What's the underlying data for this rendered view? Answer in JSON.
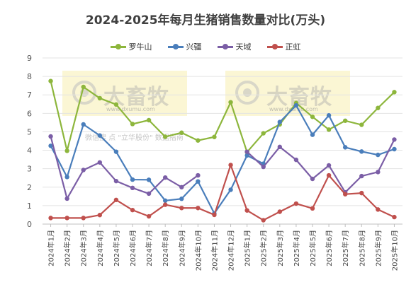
{
  "chart_data": {
    "type": "line",
    "title": "2024-2025年每月生猪销售数量对比(万头)",
    "xlabel": "",
    "ylabel": "",
    "ylim": [
      0,
      9
    ],
    "y_ticks": [
      0,
      1,
      2,
      3,
      4,
      5,
      6,
      7,
      8,
      9
    ],
    "grid": true,
    "legend_position": "top",
    "categories": [
      "2024年1月",
      "2024年2月",
      "2024年3月",
      "2024年4月",
      "2024年5月",
      "2024年6月",
      "2024年7月",
      "2024年8月",
      "2024年9月",
      "2024年10月",
      "2024年11月",
      "2024年12月",
      "2025年1月",
      "2025年2月",
      "2025年3月",
      "2025年4月",
      "2025年5月",
      "2025年6月",
      "2025年7月",
      "2025年8月",
      "2025年9月",
      "2025年10月"
    ],
    "series": [
      {
        "name": "罗牛山",
        "color": "#8db63c",
        "values": [
          7.75,
          3.97,
          7.43,
          6.82,
          6.48,
          5.42,
          5.63,
          4.73,
          4.95,
          4.53,
          4.72,
          6.6,
          3.9,
          4.92,
          5.4,
          6.56,
          5.81,
          5.12,
          5.6,
          5.38,
          6.29,
          7.15
        ]
      },
      {
        "name": "兴疆",
        "color": "#4a7ebb",
        "values": [
          4.24,
          2.55,
          5.4,
          4.8,
          3.92,
          2.41,
          2.4,
          1.27,
          1.37,
          2.31,
          0.58,
          1.86,
          3.72,
          3.27,
          5.53,
          6.43,
          4.84,
          5.89,
          4.16,
          3.93,
          3.75,
          4.06
        ]
      },
      {
        "name": "天域",
        "color": "#7b5ea6",
        "values": [
          4.75,
          1.38,
          2.93,
          3.34,
          2.33,
          1.96,
          1.65,
          2.52,
          2.0,
          2.64,
          null,
          null,
          3.92,
          3.1,
          4.18,
          3.48,
          2.45,
          3.18,
          1.72,
          2.6,
          2.82,
          4.58
        ]
      },
      {
        "name": "正虹",
        "color": "#c0504d",
        "values": [
          0.33,
          0.33,
          0.33,
          0.49,
          1.31,
          0.76,
          0.42,
          1.05,
          0.87,
          0.87,
          0.5,
          3.2,
          0.74,
          0.21,
          0.67,
          1.11,
          0.85,
          2.64,
          1.62,
          1.68,
          0.79,
          0.38
        ]
      }
    ]
  },
  "watermark": {
    "brand": "大畜牧",
    "site": "www.dxumu.com",
    "note": "微信搜 点 \"立华股份\" 数据指南"
  }
}
